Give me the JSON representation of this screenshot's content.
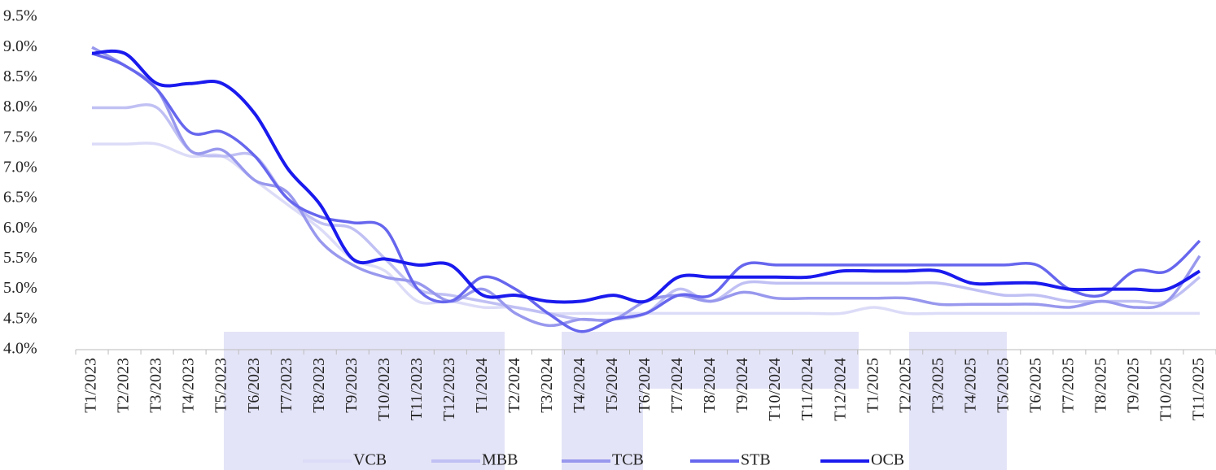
{
  "chart_data": {
    "type": "line",
    "categories": [
      "T1/2023",
      "T2/2023",
      "T3/2023",
      "T4/2023",
      "T5/2023",
      "T6/2023",
      "T7/2023",
      "T8/2023",
      "T9/2023",
      "T10/2023",
      "T11/2023",
      "T12/2023",
      "T1/2024",
      "T2/2024",
      "T3/2024",
      "T4/2024",
      "T5/2024",
      "T6/2024",
      "T7/2024",
      "T8/2024",
      "T9/2024",
      "T10/2024",
      "T11/2024",
      "T12/2024",
      "T1/2025",
      "T2/2025",
      "T3/2025",
      "T4/2025",
      "T5/2025",
      "T6/2025",
      "T7/2025",
      "T8/2025",
      "T9/2025",
      "T10/2025",
      "T11/2025"
    ],
    "series": [
      {
        "name": "VCB",
        "color": "#dcdcf8",
        "values": [
          7.4,
          7.4,
          7.4,
          7.2,
          7.2,
          6.8,
          6.4,
          6.0,
          5.5,
          5.3,
          4.8,
          4.8,
          4.7,
          4.7,
          4.6,
          4.6,
          4.6,
          4.6,
          4.6,
          4.6,
          4.6,
          4.6,
          4.6,
          4.6,
          4.7,
          4.6,
          4.6,
          4.6,
          4.6,
          4.6,
          4.6,
          4.6,
          4.6,
          4.6,
          4.6
        ]
      },
      {
        "name": "MBB",
        "color": "#c0c0f4",
        "values": [
          8.0,
          8.0,
          8.0,
          7.3,
          7.2,
          7.2,
          6.5,
          6.1,
          6.0,
          5.5,
          5.0,
          4.9,
          4.8,
          4.7,
          4.6,
          4.5,
          4.5,
          4.6,
          5.0,
          4.8,
          5.1,
          5.1,
          5.1,
          5.1,
          5.1,
          5.1,
          5.1,
          5.0,
          4.9,
          4.9,
          4.8,
          4.8,
          4.8,
          4.8,
          5.2
        ]
      },
      {
        "name": "TCB",
        "color": "#9898ee",
        "values": [
          9.0,
          8.7,
          8.3,
          7.3,
          7.3,
          6.8,
          6.6,
          5.8,
          5.4,
          5.2,
          5.1,
          4.8,
          5.0,
          4.6,
          4.4,
          4.5,
          4.5,
          4.8,
          4.9,
          4.8,
          4.95,
          4.85,
          4.85,
          4.85,
          4.85,
          4.85,
          4.75,
          4.75,
          4.75,
          4.75,
          4.7,
          4.8,
          4.7,
          4.8,
          5.55
        ]
      },
      {
        "name": "STB",
        "color": "#6666ee",
        "values": [
          8.9,
          8.7,
          8.3,
          7.6,
          7.6,
          7.2,
          6.5,
          6.2,
          6.1,
          6.0,
          5.0,
          4.8,
          5.2,
          5.0,
          4.6,
          4.3,
          4.5,
          4.6,
          4.9,
          4.9,
          5.4,
          5.4,
          5.4,
          5.4,
          5.4,
          5.4,
          5.4,
          5.4,
          5.4,
          5.4,
          5.0,
          4.9,
          5.3,
          5.3,
          5.8
        ]
      },
      {
        "name": "OCB",
        "color": "#1a1aee",
        "values": [
          8.9,
          8.9,
          8.4,
          8.4,
          8.4,
          7.9,
          7.0,
          6.4,
          5.5,
          5.5,
          5.4,
          5.4,
          4.9,
          4.9,
          4.8,
          4.8,
          4.9,
          4.8,
          5.2,
          5.2,
          5.2,
          5.2,
          5.2,
          5.3,
          5.3,
          5.3,
          5.3,
          5.1,
          5.1,
          5.1,
          5.0,
          5.0,
          5.0,
          5.0,
          5.3
        ]
      }
    ],
    "ylim": [
      4.0,
      9.5
    ],
    "yticks": [
      {
        "value": 4.0,
        "label": "4.0%"
      },
      {
        "value": 4.5,
        "label": "4.5%"
      },
      {
        "value": 5.0,
        "label": "5.0%"
      },
      {
        "value": 5.5,
        "label": "5.5%"
      },
      {
        "value": 6.0,
        "label": "6.0%"
      },
      {
        "value": 6.5,
        "label": "6.5%"
      },
      {
        "value": 7.0,
        "label": "7.0%"
      },
      {
        "value": 7.5,
        "label": "7.5%"
      },
      {
        "value": 8.0,
        "label": "8.0%"
      },
      {
        "value": 8.5,
        "label": "8.5%"
      },
      {
        "value": 9.0,
        "label": "9.0%"
      },
      {
        "value": 9.5,
        "label": "9.5%"
      }
    ],
    "legend": "bottom"
  }
}
